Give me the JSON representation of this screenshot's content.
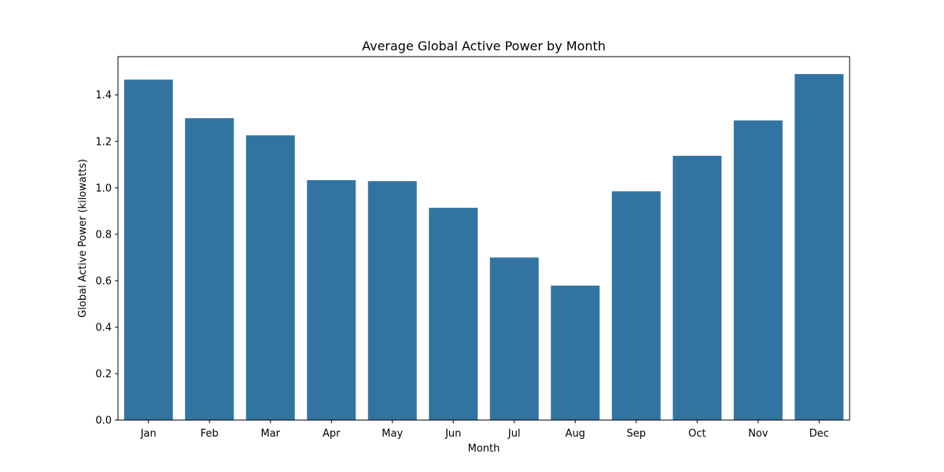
{
  "chart_data": {
    "type": "bar",
    "title": "Average Global Active Power by Month",
    "xlabel": "Month",
    "ylabel": "Global Active Power (kilowatts)",
    "categories": [
      "Jan",
      "Feb",
      "Mar",
      "Apr",
      "May",
      "Jun",
      "Jul",
      "Aug",
      "Sep",
      "Oct",
      "Nov",
      "Dec"
    ],
    "values": [
      1.466,
      1.3,
      1.226,
      1.033,
      1.029,
      0.914,
      0.7,
      0.579,
      0.985,
      1.138,
      1.29,
      1.49
    ],
    "ylim": [
      0,
      1.565
    ],
    "yticks": [
      0.0,
      0.2,
      0.4,
      0.6,
      0.8,
      1.0,
      1.2,
      1.4
    ],
    "ytick_labels": [
      "0.0",
      "0.2",
      "0.4",
      "0.6",
      "0.8",
      "1.0",
      "1.2",
      "1.4"
    ],
    "bar_color": "#3274a1",
    "grid": false,
    "legend": "none"
  }
}
